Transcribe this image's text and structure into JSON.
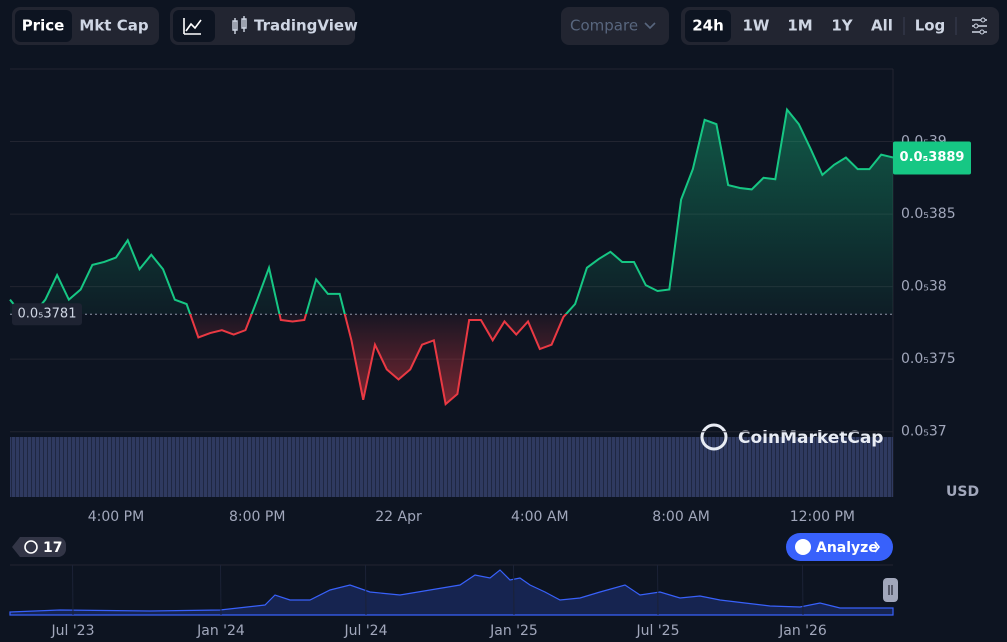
{
  "toolbar": {
    "price": "Price",
    "mkt_cap": "Mkt Cap",
    "tradingview": "TradingView",
    "compare": "Compare",
    "ranges": [
      "24h",
      "1W",
      "1M",
      "1Y",
      "All"
    ],
    "log": "Log"
  },
  "chart_data": {
    "type": "line",
    "categories": [
      null,
      null,
      null,
      null,
      null,
      null,
      null,
      null,
      null,
      "4:00 PM",
      null,
      null,
      null,
      null,
      null,
      null,
      null,
      null,
      null,
      null,
      null,
      "8:00 PM",
      null,
      null,
      null,
      null,
      null,
      null,
      null,
      null,
      null,
      null,
      null,
      "22 Apr",
      null,
      null,
      null,
      null,
      null,
      null,
      null,
      null,
      null,
      null,
      null,
      "4:00 AM",
      null,
      null,
      null,
      null,
      null,
      null,
      null,
      null,
      null,
      null,
      null,
      "8:00 AM",
      null,
      null,
      null,
      null,
      null,
      null,
      null,
      null,
      null,
      null,
      null,
      "12:00 PM",
      null,
      null,
      null,
      null,
      null,
      null
    ],
    "values": [
      3.791e-06,
      3.781e-06,
      3.781e-06,
      3.791e-06,
      3.808e-06,
      3.791e-06,
      3.798e-06,
      3.815e-06,
      3.817e-06,
      3.82e-06,
      3.832e-06,
      3.812e-06,
      3.822e-06,
      3.812e-06,
      3.791e-06,
      3.788e-06,
      3.765e-06,
      3.768e-06,
      3.77e-06,
      3.767e-06,
      3.77e-06,
      3.791e-06,
      3.813e-06,
      3.777e-06,
      3.776e-06,
      3.777e-06,
      3.805e-06,
      3.795e-06,
      3.795e-06,
      3.763e-06,
      3.722e-06,
      3.76e-06,
      3.743e-06,
      3.736e-06,
      3.743e-06,
      3.76e-06,
      3.763e-06,
      3.719e-06,
      3.726e-06,
      3.777e-06,
      3.777e-06,
      3.763e-06,
      3.776e-06,
      3.767e-06,
      3.776e-06,
      3.757e-06,
      3.76e-06,
      3.779e-06,
      3.788e-06,
      3.813e-06,
      3.819e-06,
      3.824e-06,
      3.817e-06,
      3.817e-06,
      3.801e-06,
      3.797e-06,
      3.798e-06,
      3.86e-06,
      3.881e-06,
      3.915e-06,
      3.912e-06,
      3.87e-06,
      3.868e-06,
      3.867e-06,
      3.875e-06,
      3.874e-06,
      3.922e-06,
      3.912e-06,
      3.895e-06,
      3.877e-06,
      3.884e-06,
      3.889e-06,
      3.881e-06,
      3.881e-06,
      3.891e-06,
      3.889e-06
    ],
    "current_price_label": "0.0₅3889",
    "baseline": {
      "value": 3.781e-06,
      "label": "0.0₅3781"
    },
    "up_color": "#16c784",
    "down_color": "#ea3943",
    "ylim": [
      3.655e-06,
      3.95e-06
    ],
    "yticks": [
      {
        "value": 3.7e-06,
        "label": "0.0₅37"
      },
      {
        "value": 3.75e-06,
        "label": "0.0₅375"
      },
      {
        "value": 3.8e-06,
        "label": "0.0₅38"
      },
      {
        "value": 3.85e-06,
        "label": "0.0₅385"
      },
      {
        "value": 3.9e-06,
        "label": "0.0₅39"
      }
    ],
    "grid": true,
    "currency": "USD",
    "watermark": "CoinMarketCap"
  },
  "footer": {
    "history_count": "17",
    "analyze": "Analyze",
    "navigator_labels": [
      "Jul '23",
      "Jan '24",
      "Jul '24",
      "Jan '25",
      "Jul '25",
      "Jan '26"
    ]
  }
}
